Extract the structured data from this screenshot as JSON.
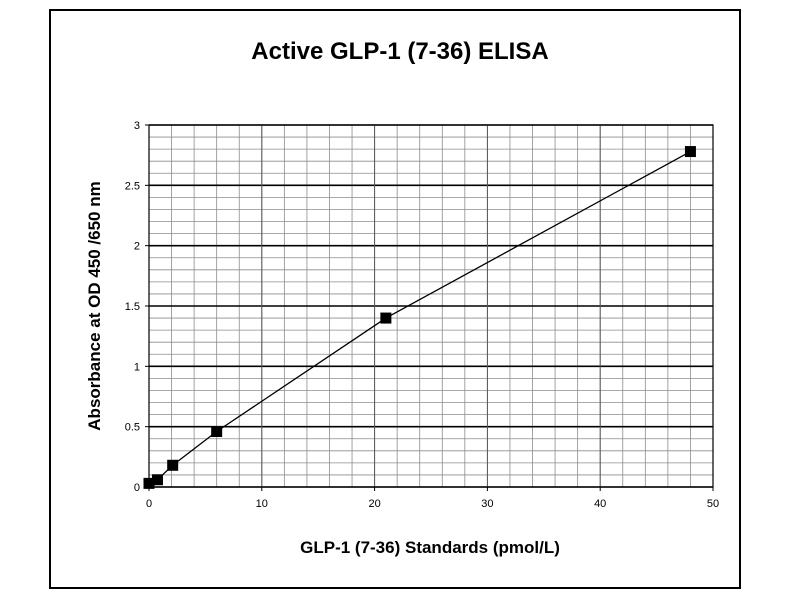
{
  "chart_data": {
    "type": "scatter",
    "title": "Active GLP-1 (7-36) ELISA",
    "xlabel": "GLP-1 (7-36) Standards (pmol/L)",
    "ylabel": "Absorbance at OD 450 /650 nm",
    "xlim": [
      0,
      50
    ],
    "ylim": [
      0,
      3
    ],
    "x_ticks": [
      "0",
      "10",
      "20",
      "30",
      "40",
      "50"
    ],
    "y_ticks": [
      "0",
      "0.5",
      "1",
      "1.5",
      "2",
      "2.5",
      "3"
    ],
    "grid": true,
    "series": [
      {
        "x": [
          0,
          0.75,
          2.1,
          6,
          21,
          48
        ],
        "y": [
          0.03,
          0.06,
          0.18,
          0.46,
          1.4,
          2.78
        ],
        "connected": true,
        "marker": "square",
        "color": "#000000"
      }
    ]
  }
}
